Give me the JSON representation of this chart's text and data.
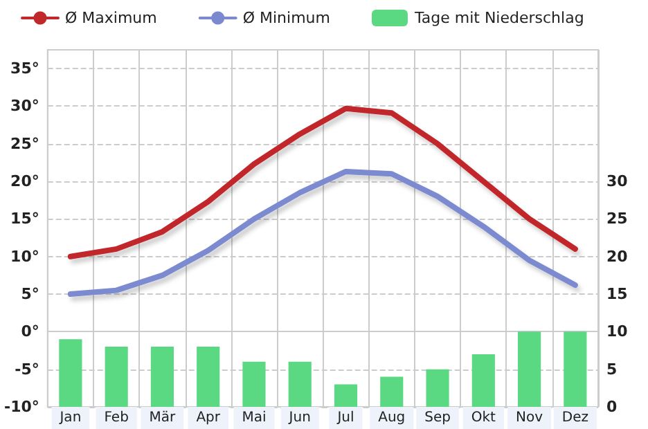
{
  "chart_data": {
    "type": "line",
    "categories": [
      "Jan",
      "Feb",
      "Mär",
      "Apr",
      "Mai",
      "Jun",
      "Jul",
      "Aug",
      "Sep",
      "Okt",
      "Nov",
      "Dez"
    ],
    "series": [
      {
        "name": "Ø Maximum",
        "color": "#c0282a",
        "values": [
          10,
          11,
          13.3,
          17.3,
          22.3,
          26.3,
          29.7,
          29.1,
          25,
          20,
          15,
          11
        ]
      },
      {
        "name": "Ø Minimum",
        "color": "#7b8ad0",
        "values": [
          5,
          5.5,
          7.5,
          10.8,
          15,
          18.5,
          21.3,
          21,
          18,
          14,
          9.5,
          6.2
        ]
      },
      {
        "name": "Tage mit Niederschlag",
        "type": "bar",
        "axis": "y2",
        "color": "#5ad882",
        "values": [
          9,
          8,
          8,
          8,
          6,
          6,
          3,
          4,
          5,
          7,
          10,
          10
        ]
      }
    ],
    "ylim": [
      -10,
      37.5
    ],
    "yticks": [
      {
        "value": -10,
        "label": "-10°"
      },
      {
        "value": -5,
        "label": "-5°"
      },
      {
        "value": 0,
        "label": "0°"
      },
      {
        "value": 5,
        "label": "5°"
      },
      {
        "value": 10,
        "label": "10°"
      },
      {
        "value": 15,
        "label": "15°"
      },
      {
        "value": 20,
        "label": "20°"
      },
      {
        "value": 25,
        "label": "25°"
      },
      {
        "value": 30,
        "label": "30°"
      },
      {
        "value": 35,
        "label": "35°"
      }
    ],
    "y2lim": [
      0,
      47.5
    ],
    "y2ticks": [
      0,
      5,
      10,
      15,
      20,
      25,
      30
    ],
    "grid": true,
    "legend": "top",
    "marker": "none",
    "line_style": "solid"
  }
}
